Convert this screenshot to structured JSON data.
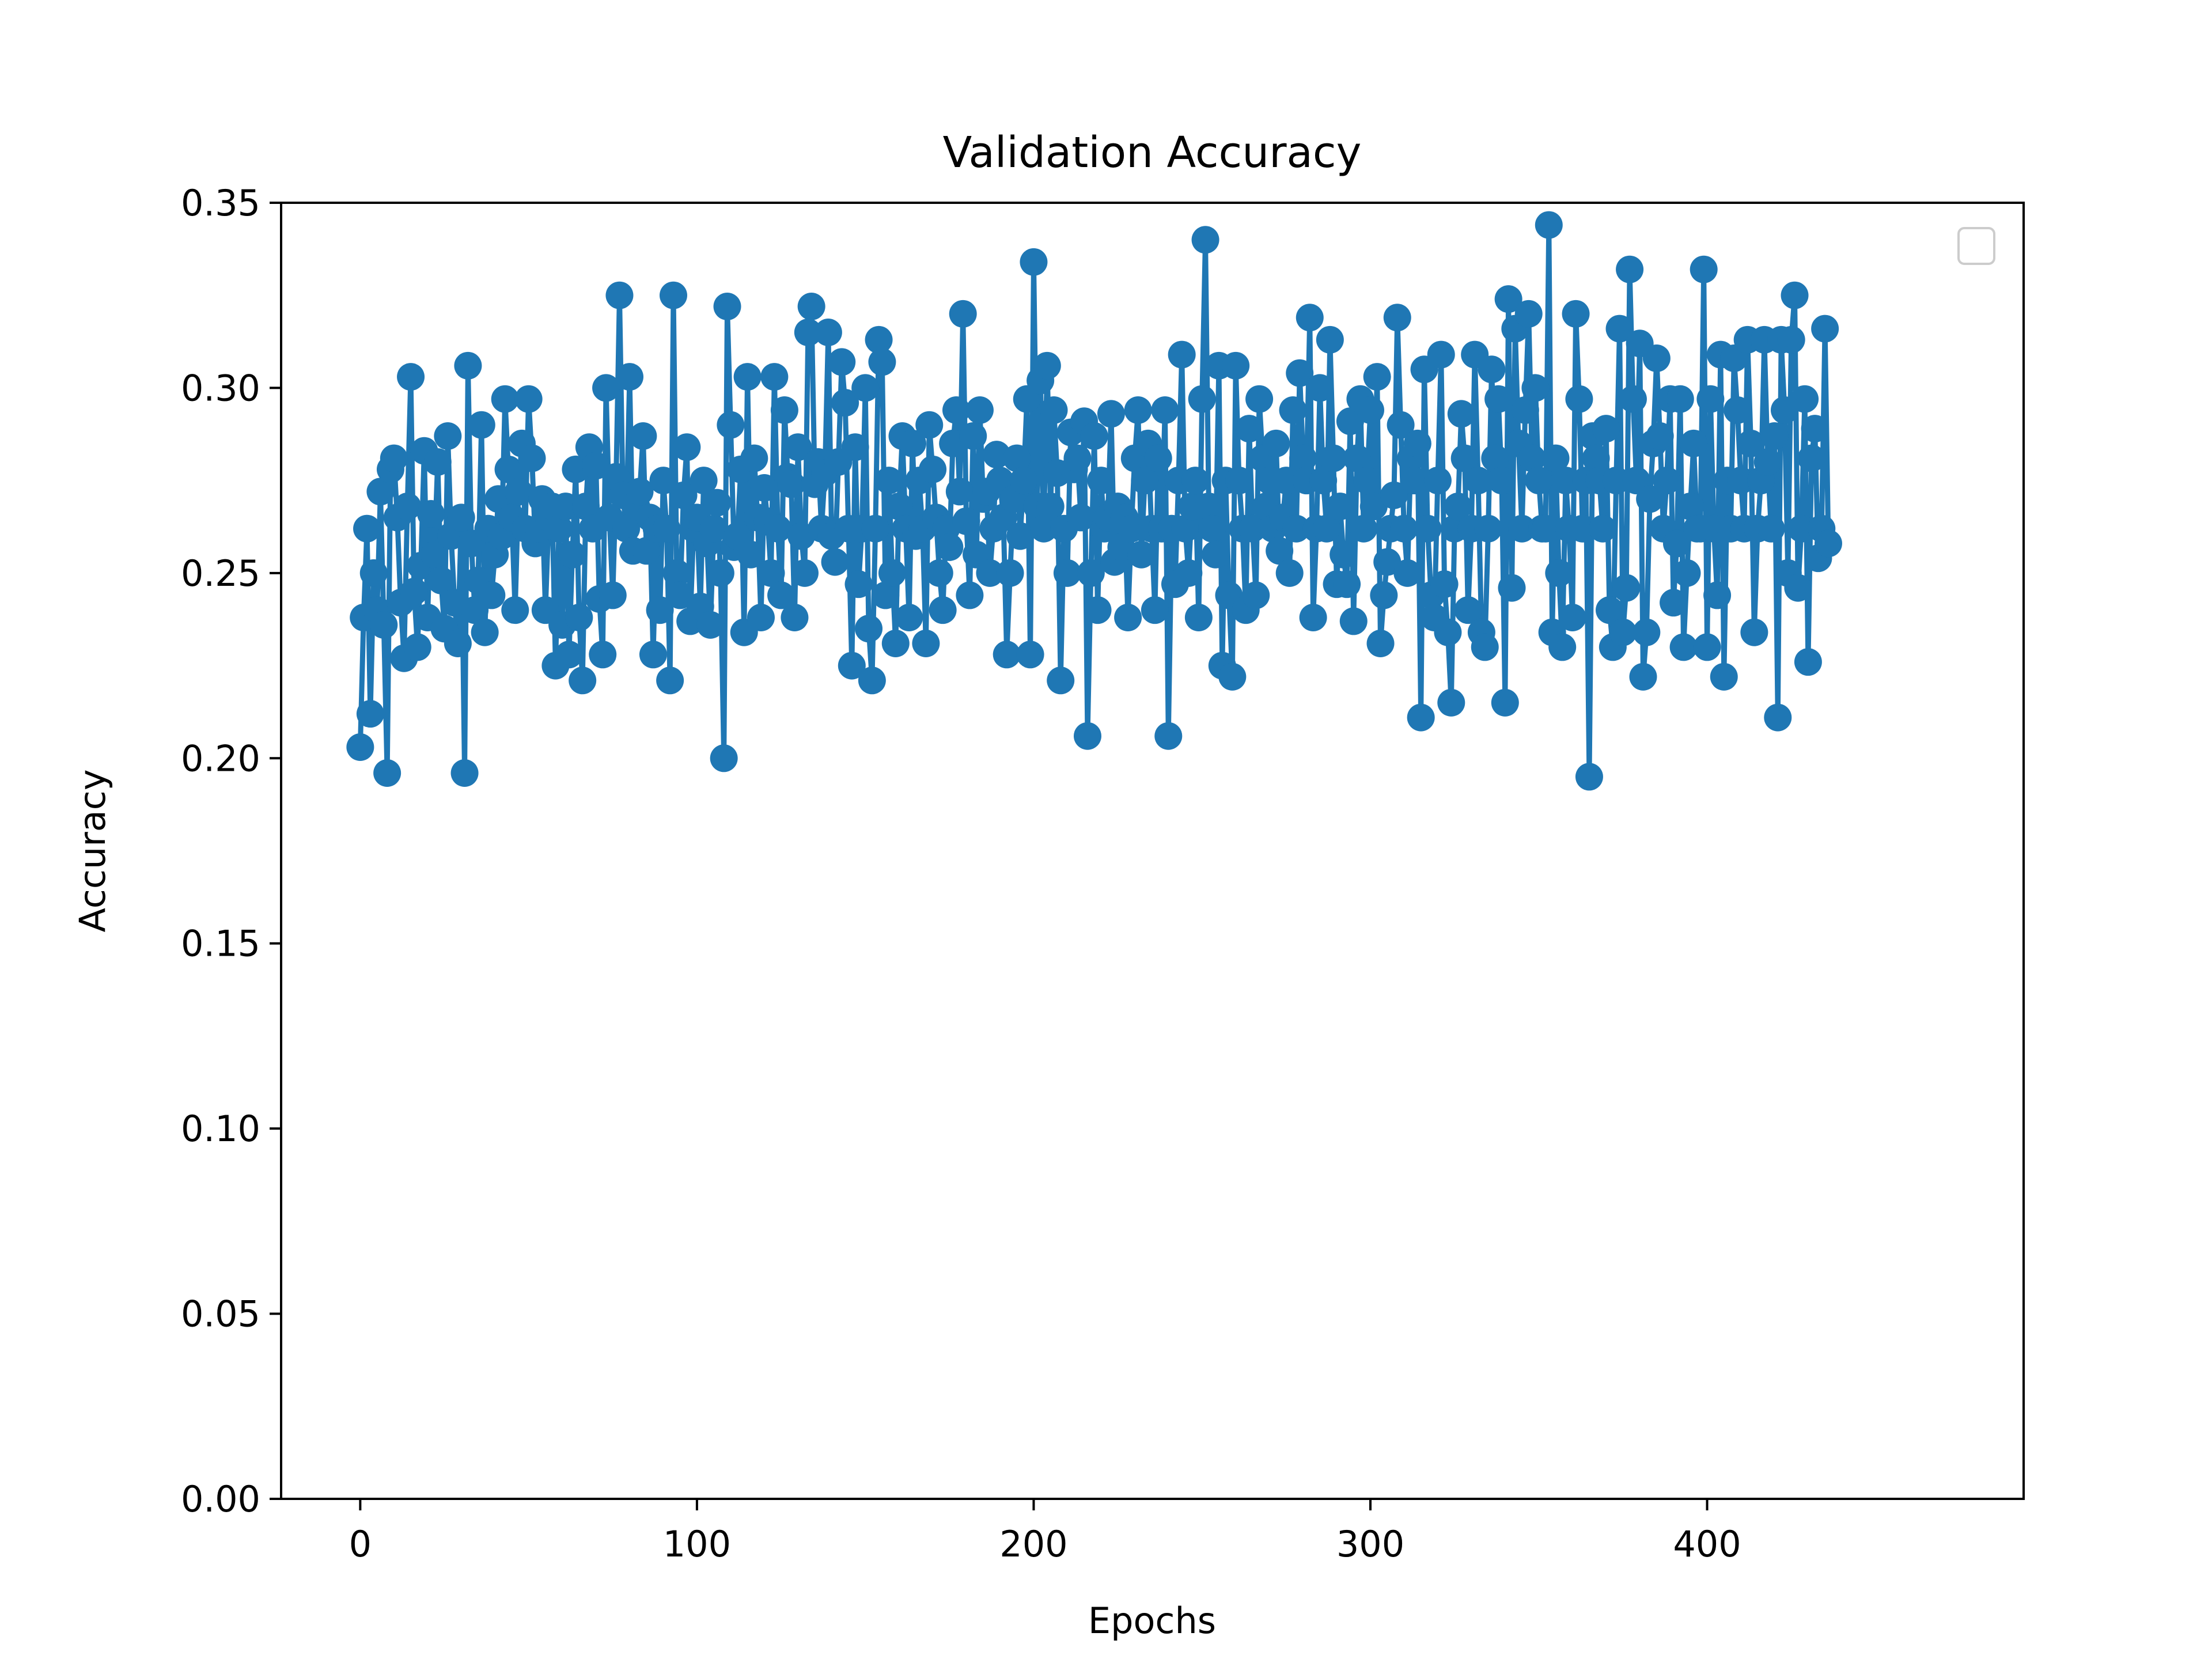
{
  "chart_data": {
    "type": "line",
    "title": "Validation Accuracy",
    "xlabel": "Epochs",
    "ylabel": "Accuracy",
    "xlim": [
      -23.5,
      494
    ],
    "ylim": [
      0.0,
      0.35
    ],
    "x_ticks": [
      {
        "value": 0,
        "label": "0"
      },
      {
        "value": 100,
        "label": "100"
      },
      {
        "value": 200,
        "label": "200"
      },
      {
        "value": 300,
        "label": "300"
      },
      {
        "value": 400,
        "label": "400"
      }
    ],
    "y_ticks": [
      {
        "value": 0.0,
        "label": "0.00"
      },
      {
        "value": 0.05,
        "label": "0.05"
      },
      {
        "value": 0.1,
        "label": "0.10"
      },
      {
        "value": 0.15,
        "label": "0.15"
      },
      {
        "value": 0.2,
        "label": "0.20"
      },
      {
        "value": 0.25,
        "label": "0.25"
      },
      {
        "value": 0.3,
        "label": "0.30"
      },
      {
        "value": 0.35,
        "label": "0.35"
      }
    ],
    "grid": false,
    "legend": "top-right (empty)",
    "series_color": "#1f77b4",
    "marker": "circle",
    "series": [
      {
        "values": [
          0.203,
          0.238,
          0.262,
          0.212,
          0.25,
          0.24,
          0.272,
          0.236,
          0.196,
          0.278,
          0.281,
          0.265,
          0.242,
          0.227,
          0.268,
          0.303,
          0.245,
          0.23,
          0.252,
          0.283,
          0.238,
          0.266,
          0.255,
          0.28,
          0.248,
          0.235,
          0.287,
          0.26,
          0.242,
          0.231,
          0.265,
          0.196,
          0.306,
          0.258,
          0.24,
          0.248,
          0.29,
          0.234,
          0.262,
          0.244,
          0.255,
          0.27,
          0.26,
          0.297,
          0.278,
          0.265,
          0.24,
          0.272,
          0.285,
          0.262,
          0.297,
          0.281,
          0.258,
          0.262,
          0.27,
          0.24,
          0.265,
          0.268,
          0.225,
          0.262,
          0.236,
          0.268,
          0.228,
          0.255,
          0.278,
          0.238,
          0.221,
          0.268,
          0.284,
          0.262,
          0.279,
          0.243,
          0.228,
          0.3,
          0.265,
          0.244,
          0.276,
          0.325,
          0.271,
          0.262,
          0.303,
          0.256,
          0.268,
          0.272,
          0.287,
          0.256,
          0.265,
          0.228,
          0.262,
          0.24,
          0.275,
          0.262,
          0.221,
          0.325,
          0.25,
          0.244,
          0.271,
          0.284,
          0.237,
          0.262,
          0.265,
          0.241,
          0.275,
          0.258,
          0.236,
          0.262,
          0.269,
          0.25,
          0.2,
          0.322,
          0.29,
          0.257,
          0.26,
          0.278,
          0.234,
          0.303,
          0.255,
          0.281,
          0.265,
          0.238,
          0.273,
          0.264,
          0.25,
          0.303,
          0.262,
          0.244,
          0.294,
          0.276,
          0.274,
          0.238,
          0.284,
          0.26,
          0.25,
          0.315,
          0.322,
          0.274,
          0.28,
          0.262,
          0.277,
          0.315,
          0.26,
          0.253,
          0.28,
          0.307,
          0.296,
          0.262,
          0.225,
          0.284,
          0.247,
          0.262,
          0.3,
          0.235,
          0.221,
          0.262,
          0.313,
          0.307,
          0.244,
          0.275,
          0.25,
          0.231,
          0.268,
          0.287,
          0.262,
          0.238,
          0.285,
          0.26,
          0.275,
          0.262,
          0.231,
          0.29,
          0.278,
          0.265,
          0.25,
          0.24,
          0.262,
          0.257,
          0.285,
          0.294,
          0.272,
          0.32,
          0.264,
          0.244,
          0.287,
          0.255,
          0.294,
          0.27,
          0.272,
          0.25,
          0.262,
          0.282,
          0.275,
          0.265,
          0.228,
          0.25,
          0.27,
          0.281,
          0.26,
          0.275,
          0.297,
          0.228,
          0.334,
          0.268,
          0.302,
          0.262,
          0.306,
          0.268,
          0.294,
          0.277,
          0.221,
          0.262,
          0.25,
          0.288,
          0.278,
          0.281,
          0.265,
          0.291,
          0.206,
          0.25,
          0.287,
          0.24,
          0.275,
          0.262,
          0.265,
          0.293,
          0.253,
          0.268,
          0.257,
          0.265,
          0.238,
          0.262,
          0.281,
          0.294,
          0.255,
          0.275,
          0.285,
          0.262,
          0.24,
          0.281,
          0.262,
          0.294,
          0.206,
          0.262,
          0.247,
          0.275,
          0.309,
          0.262,
          0.25,
          0.268,
          0.275,
          0.238,
          0.297,
          0.34,
          0.268,
          0.262,
          0.255,
          0.306,
          0.225,
          0.275,
          0.244,
          0.222,
          0.306,
          0.275,
          0.262,
          0.24,
          0.289,
          0.262,
          0.244,
          0.297,
          0.281,
          0.268,
          0.275,
          0.262,
          0.285,
          0.256,
          0.265,
          0.275,
          0.25,
          0.294,
          0.262,
          0.304,
          0.281,
          0.275,
          0.319,
          0.238,
          0.262,
          0.3,
          0.275,
          0.262,
          0.313,
          0.281,
          0.247,
          0.268,
          0.255,
          0.247,
          0.291,
          0.237,
          0.281,
          0.297,
          0.262,
          0.275,
          0.294,
          0.268,
          0.303,
          0.231,
          0.244,
          0.253,
          0.262,
          0.271,
          0.319,
          0.29,
          0.262,
          0.25,
          0.281,
          0.275,
          0.285,
          0.211,
          0.305,
          0.262,
          0.244,
          0.238,
          0.275,
          0.309,
          0.247,
          0.234,
          0.215,
          0.262,
          0.268,
          0.293,
          0.281,
          0.24,
          0.262,
          0.309,
          0.275,
          0.234,
          0.23,
          0.262,
          0.305,
          0.281,
          0.297,
          0.275,
          0.215,
          0.324,
          0.246,
          0.316,
          0.285,
          0.262,
          0.294,
          0.32,
          0.281,
          0.3,
          0.275,
          0.262,
          0.262,
          0.344,
          0.234,
          0.281,
          0.25,
          0.23,
          0.275,
          0.262,
          0.238,
          0.32,
          0.297,
          0.262,
          0.275,
          0.195,
          0.287,
          0.281,
          0.275,
          0.262,
          0.289,
          0.24,
          0.23,
          0.275,
          0.316,
          0.234,
          0.246,
          0.332,
          0.297,
          0.275,
          0.312,
          0.222,
          0.234,
          0.27,
          0.285,
          0.308,
          0.287,
          0.262,
          0.275,
          0.297,
          0.242,
          0.258,
          0.297,
          0.23,
          0.25,
          0.268,
          0.285,
          0.262,
          0.262,
          0.332,
          0.23,
          0.297,
          0.262,
          0.244,
          0.309,
          0.222,
          0.275,
          0.262,
          0.308,
          0.294,
          0.275,
          0.262,
          0.313,
          0.285,
          0.234,
          0.262,
          0.275,
          0.313,
          0.28,
          0.262,
          0.287,
          0.211,
          0.313,
          0.294,
          0.25,
          0.313,
          0.325,
          0.246,
          0.262,
          0.297,
          0.226,
          0.281,
          0.289,
          0.254,
          0.262,
          0.316,
          0.258
        ]
      }
    ]
  }
}
